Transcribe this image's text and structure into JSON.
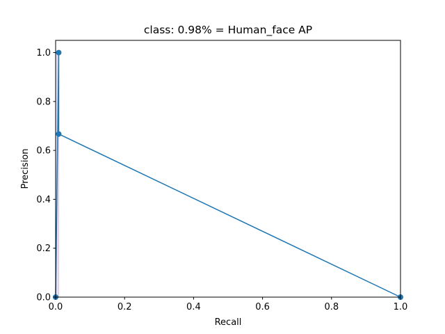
{
  "chart_data": {
    "type": "line",
    "title": "class: 0.98% = Human_face AP",
    "xlabel": "Recall",
    "ylabel": "Precision",
    "xlim": [
      0,
      1
    ],
    "ylim": [
      0,
      1.05
    ],
    "grid": false,
    "xticks": [
      "0.0",
      "0.2",
      "0.4",
      "0.6",
      "0.8",
      "1.0"
    ],
    "yticks": [
      "0.0",
      "0.2",
      "0.4",
      "0.6",
      "0.8",
      "1.0"
    ],
    "series": [
      {
        "color": "#1f77b4",
        "marker": "circle",
        "x": [
          0.0,
          0.009,
          0.009,
          1.0
        ],
        "y": [
          0.0,
          1.0,
          0.667,
          0.0
        ]
      }
    ],
    "fill": {
      "color": "#d8c8e6",
      "x": [
        0.0,
        0.009
      ],
      "y": [
        1.0,
        1.0
      ]
    }
  }
}
